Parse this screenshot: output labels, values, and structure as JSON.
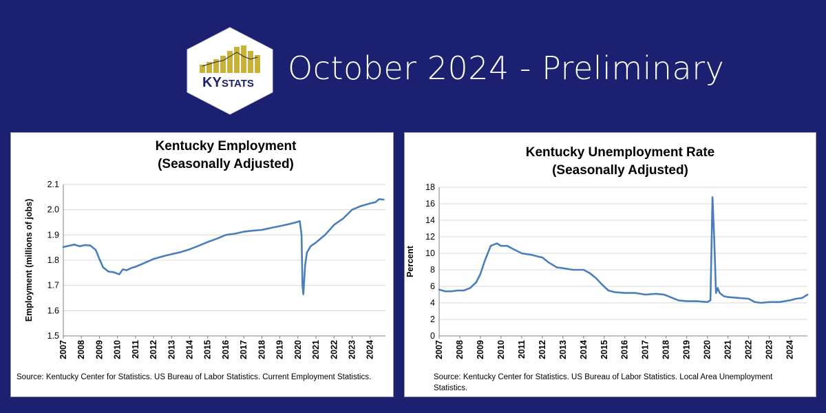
{
  "header": {
    "title": "October 2024 - Preliminary",
    "logo": {
      "text_ky": "KY",
      "text_stats": "STATS",
      "hex_color": "#ffffff",
      "bar_color": "#c9b23a",
      "text_color": "#1b2170"
    }
  },
  "colors": {
    "background": "#1b2170",
    "line": "#4a7ebb"
  },
  "chart_data": [
    {
      "type": "line",
      "title": "Kentucky Employment",
      "subtitle": "(Seasonally Adjusted)",
      "xlabel": "",
      "ylabel": "Employment (millions of jobs)",
      "ylim": [
        1.5,
        2.1
      ],
      "yticks": [
        "1.5",
        "1.6",
        "1.7",
        "1.8",
        "1.9",
        "2.0",
        "2.1"
      ],
      "xlim": [
        2007,
        2024.85
      ],
      "xticks": [
        "2007",
        "2008",
        "2009",
        "2010",
        "2011",
        "2012",
        "2013",
        "2014",
        "2015",
        "2016",
        "2017",
        "2018",
        "2019",
        "2020",
        "2021",
        "2022",
        "2023",
        "2024"
      ],
      "grid": true,
      "series": [
        {
          "x": [
            2007.0,
            2007.3,
            2007.6,
            2007.9,
            2008.2,
            2008.5,
            2008.8,
            2009.0,
            2009.2,
            2009.5,
            2009.8,
            2010.1,
            2010.3,
            2010.5,
            2010.8,
            2011.0,
            2011.5,
            2012.0,
            2012.5,
            2013.0,
            2013.5,
            2014.0,
            2014.5,
            2015.0,
            2015.5,
            2016.0,
            2016.5,
            2017.0,
            2017.5,
            2018.0,
            2018.5,
            2019.0,
            2019.5,
            2019.9,
            2020.1,
            2020.2,
            2020.25,
            2020.3,
            2020.4,
            2020.5,
            2020.7,
            2021.0,
            2021.5,
            2022.0,
            2022.5,
            2023.0,
            2023.5,
            2024.0,
            2024.3,
            2024.5,
            2024.75
          ],
          "y": [
            1.852,
            1.857,
            1.862,
            1.855,
            1.86,
            1.858,
            1.84,
            1.805,
            1.772,
            1.755,
            1.752,
            1.744,
            1.764,
            1.76,
            1.77,
            1.774,
            1.789,
            1.805,
            1.815,
            1.824,
            1.832,
            1.843,
            1.857,
            1.872,
            1.885,
            1.9,
            1.905,
            1.913,
            1.917,
            1.92,
            1.928,
            1.935,
            1.943,
            1.95,
            1.955,
            1.9,
            1.7,
            1.665,
            1.78,
            1.83,
            1.855,
            1.87,
            1.9,
            1.94,
            1.965,
            2.0,
            2.015,
            2.025,
            2.03,
            2.042,
            2.04
          ]
        }
      ]
    },
    {
      "type": "line",
      "title": "Kentucky Unemployment Rate",
      "subtitle": "(Seasonally Adjusted)",
      "xlabel": "",
      "ylabel": "Percent",
      "ylim": [
        0,
        18
      ],
      "yticks": [
        "0",
        "2",
        "4",
        "6",
        "8",
        "10",
        "12",
        "14",
        "16",
        "18"
      ],
      "xlim": [
        2007,
        2024.85
      ],
      "xticks": [
        "2007",
        "2008",
        "2009",
        "2010",
        "2011",
        "2012",
        "2013",
        "2014",
        "2015",
        "2016",
        "2017",
        "2018",
        "2019",
        "2020",
        "2021",
        "2022",
        "2023",
        "2024"
      ],
      "grid": true,
      "series": [
        {
          "x": [
            2007.0,
            2007.3,
            2007.6,
            2007.9,
            2008.2,
            2008.5,
            2008.8,
            2009.0,
            2009.2,
            2009.5,
            2009.8,
            2010.0,
            2010.3,
            2010.6,
            2011.0,
            2011.5,
            2011.8,
            2012.0,
            2012.3,
            2012.7,
            2013.0,
            2013.5,
            2014.0,
            2014.3,
            2014.6,
            2014.9,
            2015.2,
            2015.5,
            2016.0,
            2016.5,
            2017.0,
            2017.5,
            2017.9,
            2018.2,
            2018.6,
            2019.0,
            2019.5,
            2020.0,
            2020.15,
            2020.25,
            2020.33,
            2020.42,
            2020.5,
            2020.6,
            2020.8,
            2021.0,
            2021.5,
            2022.0,
            2022.3,
            2022.6,
            2023.0,
            2023.5,
            2024.0,
            2024.3,
            2024.6,
            2024.85
          ],
          "y": [
            5.6,
            5.4,
            5.4,
            5.5,
            5.5,
            5.8,
            6.5,
            7.5,
            9.0,
            10.9,
            11.2,
            10.9,
            10.9,
            10.5,
            10.0,
            9.8,
            9.6,
            9.5,
            8.9,
            8.3,
            8.2,
            8.0,
            8.0,
            7.6,
            7.0,
            6.2,
            5.5,
            5.3,
            5.2,
            5.2,
            5.0,
            5.1,
            5.0,
            4.7,
            4.3,
            4.2,
            4.2,
            4.1,
            4.3,
            16.8,
            12.0,
            5.2,
            5.8,
            5.2,
            4.8,
            4.7,
            4.6,
            4.5,
            4.1,
            4.0,
            4.1,
            4.1,
            4.3,
            4.5,
            4.6,
            5.0
          ]
        }
      ]
    }
  ],
  "sources": {
    "employment": "Source: Kentucky Center for Statistics. US Bureau of Labor Statistics. Current Employment Statistics.",
    "unemployment": "Source: Kentucky Center for Statistics. US Bureau of Labor Statistics. Local Area Unemployment Statistics."
  }
}
